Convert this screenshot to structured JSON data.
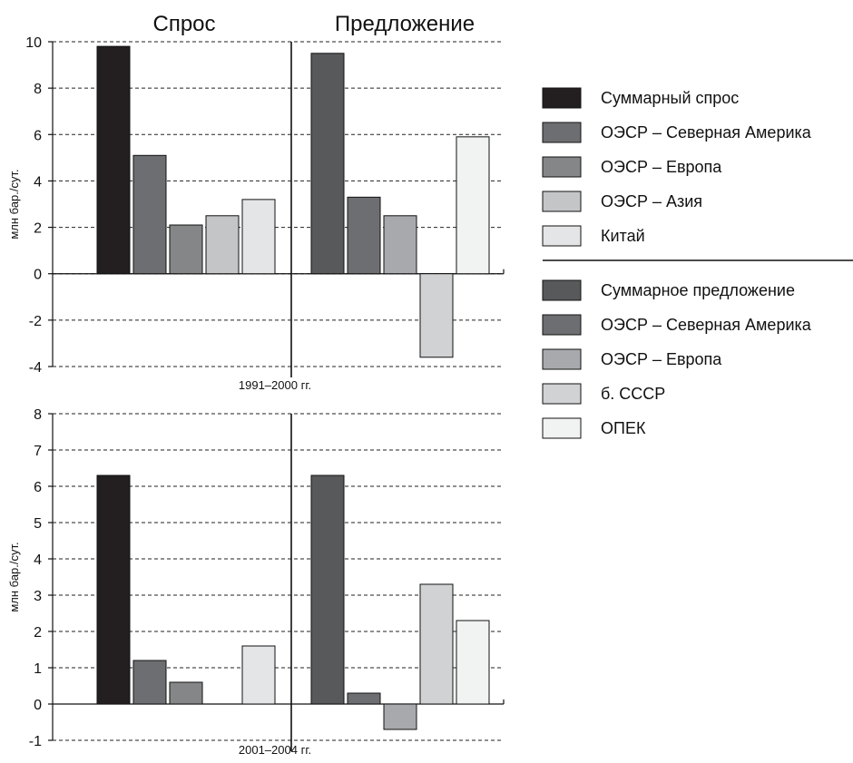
{
  "headers": {
    "demand": "Спрос",
    "supply": "Предложение"
  },
  "legend_demand": [
    {
      "label": "Суммарный спрос",
      "color": "#231f20"
    },
    {
      "label": "ОЭСР – Северная Америка",
      "color": "#6d6e71"
    },
    {
      "label": "ОЭСР – Европа",
      "color": "#858688"
    },
    {
      "label": "ОЭСР – Азия",
      "color": "#c4c5c7"
    },
    {
      "label": "Китай",
      "color": "#e4e5e6"
    }
  ],
  "legend_supply": [
    {
      "label": "Суммарное предложение",
      "color": "#58595b"
    },
    {
      "label": "ОЭСР – Северная Америка",
      "color": "#6d6e71"
    },
    {
      "label": "ОЭСР – Европа",
      "color": "#a7a9ac"
    },
    {
      "label": "б. СССР",
      "color": "#d1d2d4"
    },
    {
      "label": "ОПЕК",
      "color": "#f1f2f2"
    }
  ],
  "chart_data": [
    {
      "type": "bar",
      "caption": "1991–2000 гг.",
      "ylabel": "млн бар./сут.",
      "ylim": [
        -4,
        10
      ],
      "yticks": [
        -4,
        -2,
        0,
        2,
        4,
        6,
        8,
        10
      ],
      "grid": true,
      "demand": [
        9.8,
        5.1,
        2.1,
        2.5,
        3.2
      ],
      "supply": [
        9.5,
        3.3,
        2.5,
        -3.6,
        5.9
      ]
    },
    {
      "type": "bar",
      "caption": "2001–2004 гг.",
      "ylabel": "млн бар./сут.",
      "ylim": [
        -1,
        8
      ],
      "yticks": [
        -1,
        0,
        1,
        2,
        3,
        4,
        5,
        6,
        7,
        8
      ],
      "grid": true,
      "demand": [
        6.3,
        1.2,
        0.6,
        0,
        1.6
      ],
      "supply": [
        6.3,
        0.3,
        -0.7,
        3.3,
        2.3
      ]
    }
  ]
}
